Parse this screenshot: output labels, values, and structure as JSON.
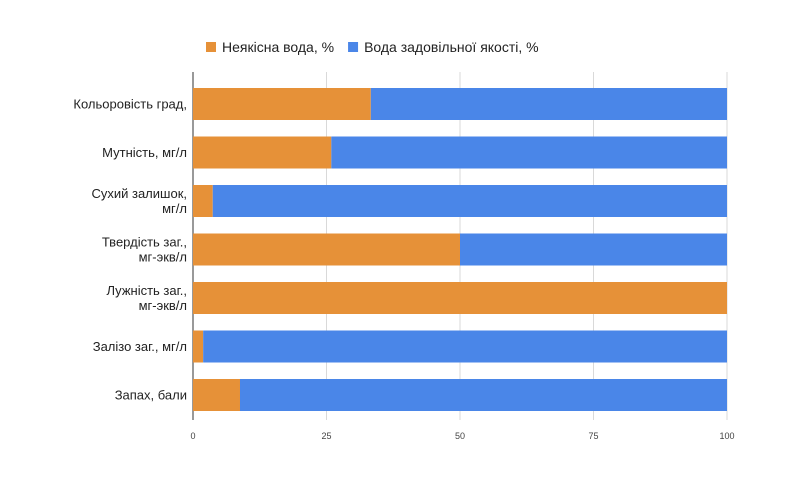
{
  "chart_data": {
    "type": "bar",
    "orientation": "horizontal",
    "stacked": true,
    "title": "",
    "xlabel": "",
    "ylabel": "",
    "xlim": [
      0,
      100
    ],
    "x_ticks": [
      0,
      25,
      50,
      75,
      100
    ],
    "grid": true,
    "legend_position": "top",
    "categories": [
      "Кольоровість град,",
      "Мутність, мг/л",
      "Сухий залишок, мг/л",
      "Твердість заг., мг-экв/л",
      "Лужність заг., мг-экв/л",
      "Залізо заг., мг/л",
      "Запах, бали"
    ],
    "category_lines": [
      [
        "Кольоровість град,"
      ],
      [
        "Мутність, мг/л"
      ],
      [
        "Сухий залишок,",
        "мг/л"
      ],
      [
        "Твердість заг.,",
        "мг-экв/л"
      ],
      [
        "Лужність заг.,",
        "мг-экв/л"
      ],
      [
        "Залізо заг., мг/л"
      ],
      [
        "Запах, бали"
      ]
    ],
    "series": [
      {
        "name": "Неякісна вода, %",
        "color": "#e69138",
        "values": [
          33.3,
          25.9,
          3.7,
          50,
          100,
          1.9,
          8.8
        ]
      },
      {
        "name": "Вода задовільної якості, %",
        "color": "#4a86e8",
        "values": [
          66.7,
          74.1,
          96.3,
          50,
          0,
          98.1,
          91.2
        ]
      }
    ]
  }
}
